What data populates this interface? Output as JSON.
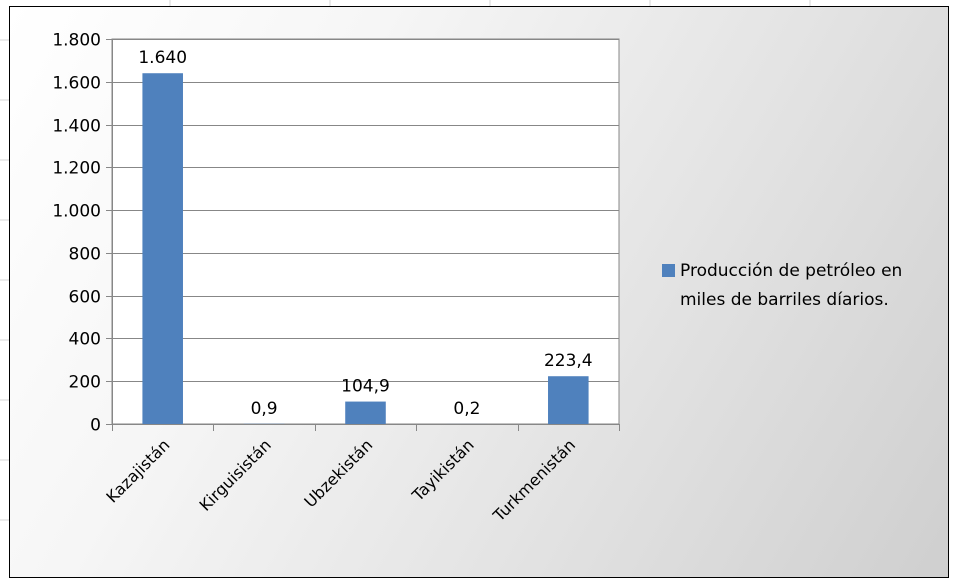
{
  "colors": {
    "bar": "#4f81bd",
    "frame_border": "#000000",
    "gridline": "#878787"
  },
  "chart_data": {
    "type": "bar",
    "title": "",
    "xlabel": "",
    "ylabel": "",
    "categories": [
      "Kazajistán",
      "Kirguisistán",
      "Ubzekistán",
      "Tayikistán",
      "Turkmenistán"
    ],
    "series": [
      {
        "name": "Producción de petróleo en miles de barriles díarios.",
        "values": [
          1640,
          0.9,
          104.9,
          0.2,
          223.4
        ],
        "data_labels": [
          "1.640",
          "0,9",
          "104,9",
          "0,2",
          "223,4"
        ]
      }
    ],
    "ylim": [
      0,
      1800
    ],
    "yticks": [
      0,
      200,
      400,
      600,
      800,
      1000,
      1200,
      1400,
      1600,
      1800
    ],
    "ytick_labels": [
      "0",
      "200",
      "400",
      "600",
      "800",
      "1.000",
      "1.200",
      "1.400",
      "1.600",
      "1.800"
    ],
    "grid": true,
    "legend_position": "right"
  }
}
